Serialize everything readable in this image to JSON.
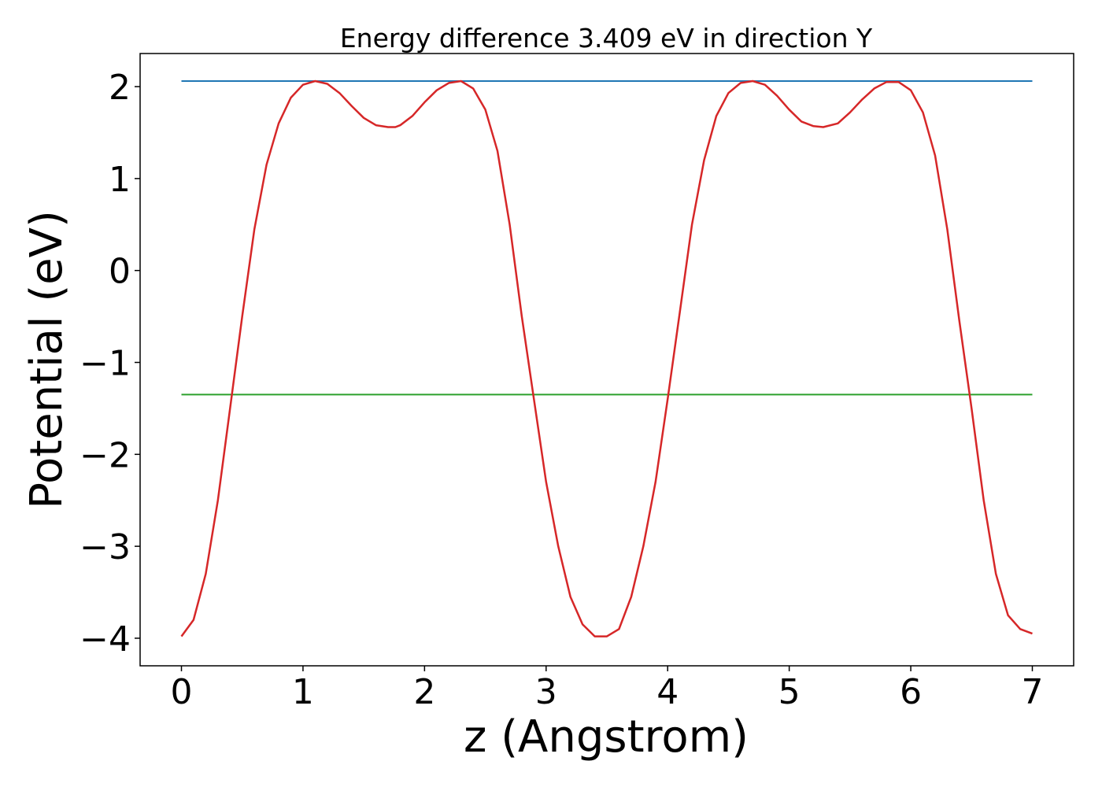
{
  "chart_data": {
    "type": "line",
    "title": "Energy difference 3.409 eV in direction Y",
    "xlabel": "z (Angstrom)",
    "ylabel": "Potential (eV)",
    "xlim": [
      -0.34,
      7.34
    ],
    "ylim": [
      -4.3,
      2.36
    ],
    "xticks": [
      0,
      1,
      2,
      3,
      4,
      5,
      6,
      7
    ],
    "yticks": [
      -4,
      -3,
      -2,
      -1,
      0,
      1,
      2
    ],
    "xtick_labels": [
      "0",
      "1",
      "2",
      "3",
      "4",
      "5",
      "6",
      "7"
    ],
    "ytick_labels": [
      "−4",
      "−3",
      "−2",
      "−1",
      "0",
      "1",
      "2"
    ],
    "grid": false,
    "legend": "none",
    "series": [
      {
        "color": "#1f77b4",
        "x": [
          0,
          7
        ],
        "y": [
          2.06,
          2.06
        ]
      },
      {
        "color": "#2ca02c",
        "x": [
          0,
          7
        ],
        "y": [
          -1.35,
          -1.35
        ]
      },
      {
        "color": "#d62728",
        "x": [
          0,
          0.1,
          0.2,
          0.3,
          0.4,
          0.5,
          0.6,
          0.7,
          0.8,
          0.9,
          1.0,
          1.1,
          1.2,
          1.3,
          1.4,
          1.5,
          1.6,
          1.7,
          1.76,
          1.8,
          1.9,
          2.0,
          2.1,
          2.2,
          2.3,
          2.4,
          2.5,
          2.6,
          2.7,
          2.8,
          2.9,
          3.0,
          3.1,
          3.2,
          3.3,
          3.4,
          3.5,
          3.6,
          3.7,
          3.8,
          3.9,
          4.0,
          4.1,
          4.2,
          4.3,
          4.4,
          4.5,
          4.6,
          4.7,
          4.8,
          4.9,
          5.0,
          5.1,
          5.2,
          5.28,
          5.4,
          5.5,
          5.6,
          5.7,
          5.8,
          5.9,
          6.0,
          6.1,
          6.2,
          6.3,
          6.4,
          6.5,
          6.6,
          6.7,
          6.8,
          6.9,
          7.0
        ],
        "y": [
          -3.98,
          -3.8,
          -3.3,
          -2.5,
          -1.5,
          -0.5,
          0.45,
          1.15,
          1.6,
          1.88,
          2.02,
          2.06,
          2.03,
          1.93,
          1.79,
          1.66,
          1.58,
          1.56,
          1.56,
          1.58,
          1.68,
          1.83,
          1.96,
          2.04,
          2.06,
          1.98,
          1.75,
          1.3,
          0.5,
          -0.5,
          -1.4,
          -2.3,
          -3.0,
          -3.55,
          -3.85,
          -3.98,
          -3.98,
          -3.9,
          -3.55,
          -3.0,
          -2.3,
          -1.4,
          -0.45,
          0.5,
          1.2,
          1.68,
          1.93,
          2.04,
          2.06,
          2.02,
          1.9,
          1.75,
          1.62,
          1.57,
          1.56,
          1.6,
          1.72,
          1.86,
          1.98,
          2.05,
          2.05,
          1.96,
          1.72,
          1.25,
          0.45,
          -0.55,
          -1.5,
          -2.5,
          -3.3,
          -3.75,
          -3.9,
          -3.95
        ]
      }
    ]
  }
}
